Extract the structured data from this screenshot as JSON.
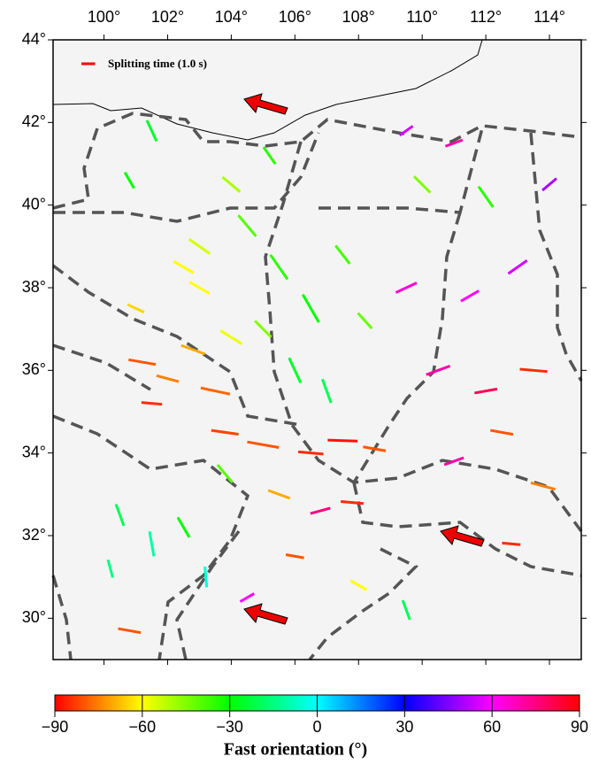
{
  "map": {
    "legend": {
      "label": "Splitting time (1.0 s)",
      "time": 1.0,
      "color": "#ff0000"
    },
    "xlim": [
      98.4,
      115
    ],
    "ylim": [
      29,
      44
    ],
    "xticks": [
      {
        "value": 100,
        "label": "100°"
      },
      {
        "value": 102,
        "label": "102°"
      },
      {
        "value": 104,
        "label": "104°"
      },
      {
        "value": 106,
        "label": "106°"
      },
      {
        "value": 108,
        "label": "108°"
      },
      {
        "value": 110,
        "label": "110°"
      },
      {
        "value": 112,
        "label": "112°"
      },
      {
        "value": 114,
        "label": "114°"
      }
    ],
    "yticks": [
      {
        "value": 30,
        "label": "30°"
      },
      {
        "value": 32,
        "label": "32°"
      },
      {
        "value": 34,
        "label": "34°"
      },
      {
        "value": 36,
        "label": "36°"
      },
      {
        "value": 38,
        "label": "38°"
      },
      {
        "value": 40,
        "label": "40°"
      },
      {
        "value": 42,
        "label": "42°"
      },
      {
        "value": 44,
        "label": "44°"
      }
    ],
    "splits": [
      [
        101.2,
        36.2,
        -80,
        1.2
      ],
      [
        102,
        35.8,
        -75,
        1.0
      ],
      [
        101.5,
        35.2,
        -85,
        0.9
      ],
      [
        102.8,
        36.5,
        -70,
        1.1
      ],
      [
        103.5,
        35.5,
        -78,
        1.3
      ],
      [
        101,
        37.5,
        -65,
        0.8
      ],
      [
        102.5,
        38.5,
        -60,
        1.0
      ],
      [
        103.8,
        34.5,
        -82,
        1.2
      ],
      [
        105,
        34.2,
        -80,
        1.4
      ],
      [
        106.5,
        34,
        -85,
        1.1
      ],
      [
        107.5,
        34.3,
        -88,
        1.3
      ],
      [
        108.5,
        34.1,
        -80,
        1.0
      ],
      [
        105.5,
        33,
        -70,
        1.0
      ],
      [
        106.8,
        32.6,
        75,
        0.9
      ],
      [
        107.8,
        32.8,
        -85,
        1.0
      ],
      [
        104.5,
        39.5,
        -40,
        1.2
      ],
      [
        105.5,
        38.5,
        -35,
        1.3
      ],
      [
        106.5,
        37.5,
        -30,
        1.4
      ],
      [
        105,
        37,
        -45,
        1.0
      ],
      [
        106,
        36,
        -25,
        1.2
      ],
      [
        107,
        35.5,
        -20,
        1.1
      ],
      [
        104,
        40.5,
        -50,
        1.0
      ],
      [
        105.2,
        41.2,
        -35,
        0.9
      ],
      [
        103,
        39,
        -55,
        1.1
      ],
      [
        107.5,
        38.8,
        -38,
        1.0
      ],
      [
        108.2,
        37.2,
        -42,
        0.9
      ],
      [
        101.5,
        41.8,
        -25,
        1.0
      ],
      [
        100.8,
        40.6,
        -30,
        0.8
      ],
      [
        109.5,
        38,
        65,
        1.0
      ],
      [
        110.5,
        36,
        70,
        1.1
      ],
      [
        112,
        35.5,
        80,
        1.0
      ],
      [
        113.5,
        36,
        -85,
        1.2
      ],
      [
        111.5,
        37.8,
        60,
        0.9
      ],
      [
        113,
        38.5,
        55,
        1.0
      ],
      [
        114,
        40.5,
        50,
        0.8
      ],
      [
        110,
        40.5,
        -45,
        1.0
      ],
      [
        112,
        40.2,
        -35,
        1.1
      ],
      [
        111,
        41.5,
        70,
        0.8
      ],
      [
        109.5,
        41.8,
        55,
        0.7
      ],
      [
        112.5,
        34.5,
        -80,
        1.0
      ],
      [
        113.8,
        33.2,
        -75,
        1.1
      ],
      [
        111,
        33.8,
        70,
        0.9
      ],
      [
        112.8,
        31.8,
        -85,
        0.8
      ],
      [
        100.5,
        32.5,
        -20,
        1.0
      ],
      [
        101.5,
        31.8,
        -10,
        1.1
      ],
      [
        102.5,
        32.2,
        -30,
        1.0
      ],
      [
        103.2,
        31,
        -5,
        0.9
      ],
      [
        100.2,
        31.2,
        -15,
        0.8
      ],
      [
        104.5,
        30.5,
        60,
        0.7
      ],
      [
        106,
        31.5,
        -80,
        0.8
      ],
      [
        108,
        30.8,
        -60,
        0.8
      ],
      [
        109.5,
        30.2,
        -20,
        0.9
      ],
      [
        100.8,
        29.7,
        -80,
        1.0
      ],
      [
        103.8,
        33.5,
        -40,
        1.0
      ],
      [
        103,
        38,
        -60,
        1.0
      ],
      [
        104,
        36.8,
        -58,
        1.1
      ]
    ]
  },
  "colorbar": {
    "label": "Fast orientation (°)",
    "lim": [
      -90,
      90
    ],
    "ticks": [
      {
        "value": -90,
        "label": "−90"
      },
      {
        "value": -60,
        "label": "−60"
      },
      {
        "value": -30,
        "label": "−30"
      },
      0,
      30,
      60,
      90
    ],
    "colormap": [
      {
        "value": -90,
        "color": "#ff0000"
      },
      {
        "value": -60,
        "color": "#ffff00"
      },
      {
        "value": -30,
        "color": "#00ff00"
      },
      {
        "value": 0,
        "color": "#00ffff"
      },
      {
        "value": 30,
        "color": "#0000ff"
      },
      {
        "value": 60,
        "color": "#ff00ff"
      },
      {
        "value": 90,
        "color": "#ff0000"
      }
    ]
  }
}
